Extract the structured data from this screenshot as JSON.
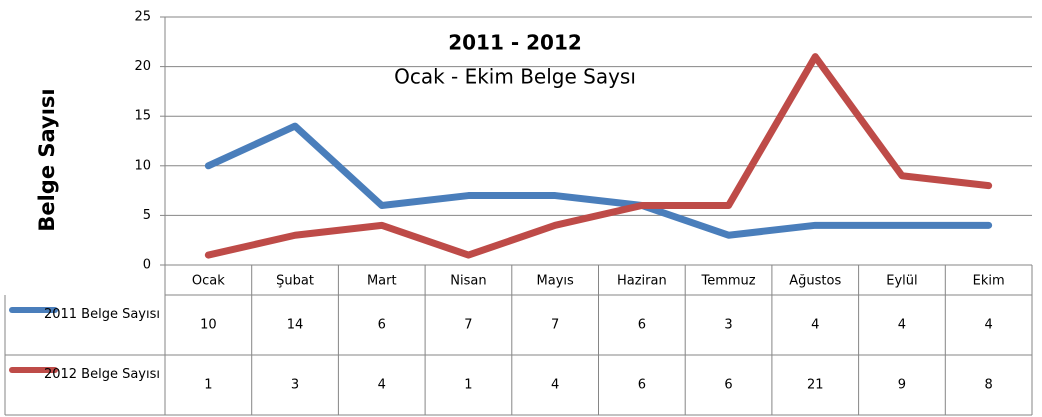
{
  "chart_data": {
    "type": "line",
    "title": "2011 - 2012",
    "subtitle": "Ocak - Ekim Belge Saysı",
    "y_label": "Belge Sayısı",
    "categories": [
      "Ocak",
      "Şubat",
      "Mart",
      "Nisan",
      "Mayıs",
      "Haziran",
      "Temmuz",
      "Ağustos",
      "Eylül",
      "Ekim"
    ],
    "series": [
      {
        "name": "2011 Belge Sayısı",
        "color": "#4a7ebb",
        "values": [
          10,
          14,
          6,
          7,
          7,
          6,
          3,
          4,
          4,
          4
        ]
      },
      {
        "name": "2012 Belge Sayısı",
        "color": "#be4b48",
        "values": [
          1,
          3,
          4,
          1,
          4,
          6,
          6,
          21,
          9,
          8
        ]
      }
    ],
    "ylim": [
      0,
      25
    ],
    "yticks": [
      0,
      5,
      10,
      15,
      20,
      25
    ],
    "grid": true,
    "data_table": true
  }
}
